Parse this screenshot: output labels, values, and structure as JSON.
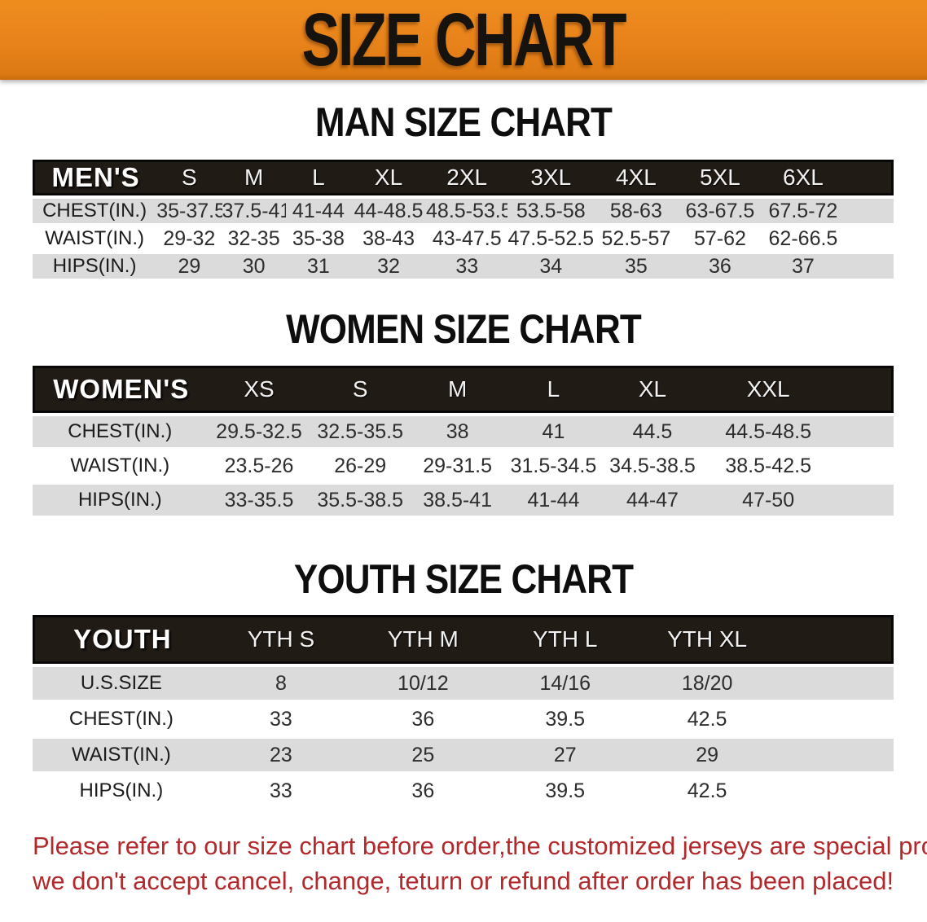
{
  "banner": {
    "title": "SIZE CHART",
    "bg_color": "#E8821B",
    "text_color": "#16120E"
  },
  "sections": [
    {
      "heading": "MAN SIZE CHART",
      "table": {
        "header_label": "MEN'S",
        "sizes": [
          "S",
          "M",
          "L",
          "XL",
          "2XL",
          "3XL",
          "4XL",
          "5XL",
          "6XL"
        ],
        "rows": [
          {
            "label": "CHEST(IN.)",
            "values": [
              "35-37.5",
              "37.5-41",
              "41-44",
              "44-48.5",
              "48.5-53.5",
              "53.5-58",
              "58-63",
              "63-67.5",
              "67.5-72"
            ]
          },
          {
            "label": "WAIST(IN.)",
            "values": [
              "29-32",
              "32-35",
              "35-38",
              "38-43",
              "43-47.5",
              "47.5-52.5",
              "52.5-57",
              "57-62",
              "62-66.5"
            ]
          },
          {
            "label": "HIPS(IN.)",
            "values": [
              "29",
              "30",
              "31",
              "32",
              "33",
              "34",
              "35",
              "36",
              "37"
            ]
          }
        ]
      }
    },
    {
      "heading": "WOMEN SIZE CHART",
      "table": {
        "header_label": "WOMEN'S",
        "sizes": [
          "XS",
          "S",
          "M",
          "L",
          "XL",
          "XXL"
        ],
        "rows": [
          {
            "label": "CHEST(IN.)",
            "values": [
              "29.5-32.5",
              "32.5-35.5",
              "38",
              "41",
              "44.5",
              "44.5-48.5"
            ]
          },
          {
            "label": "WAIST(IN.)",
            "values": [
              "23.5-26",
              "26-29",
              "29-31.5",
              "31.5-34.5",
              "34.5-38.5",
              "38.5-42.5"
            ]
          },
          {
            "label": "HIPS(IN.)",
            "values": [
              "33-35.5",
              "35.5-38.5",
              "38.5-41",
              "41-44",
              "44-47",
              "47-50"
            ]
          }
        ]
      }
    },
    {
      "heading": "YOUTH SIZE CHART",
      "table": {
        "header_label": "YOUTH",
        "sizes": [
          "YTH S",
          "YTH M",
          "YTH L",
          "YTH XL"
        ],
        "rows": [
          {
            "label": "U.S.SIZE",
            "values": [
              "8",
              "10/12",
              "14/16",
              "18/20"
            ]
          },
          {
            "label": "CHEST(IN.)",
            "values": [
              "33",
              "36",
              "39.5",
              "42.5"
            ]
          },
          {
            "label": "WAIST(IN.)",
            "values": [
              "23",
              "25",
              "27",
              "29"
            ]
          },
          {
            "label": "HIPS(IN.)",
            "values": [
              "33",
              "36",
              "39.5",
              "42.5"
            ]
          }
        ]
      }
    }
  ],
  "disclaimer": {
    "line1": "Please refer to our size chart before order,the customized jerseys are special products,",
    "line2": "we don't accept cancel, change, teturn or refund after order has been placed!",
    "color": "#b2292c"
  },
  "colors": {
    "header_bar": "#211B16",
    "stripe_gray": "#DBDBDB",
    "stripe_white": "#FFFFFF"
  }
}
